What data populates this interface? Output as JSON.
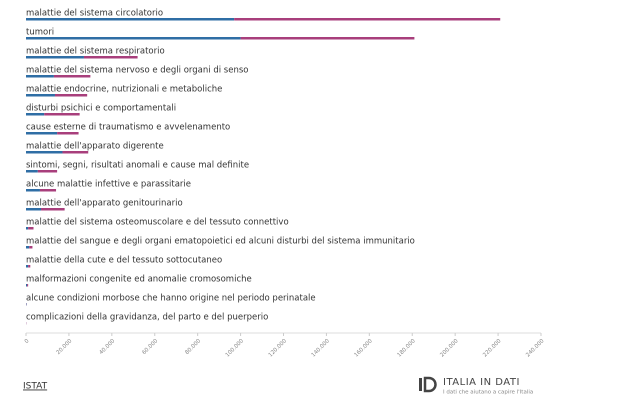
{
  "chart_data": {
    "type": "stacked-bar-horizontal",
    "categories": [
      "malattie del sistema circolatorio",
      "tumori",
      "malattie del sistema respiratorio",
      "malattie del sistema nervoso e degli organi di senso",
      "malattie endocrine, nutrizionali e metaboliche",
      "disturbi psichici e comportamentali",
      "cause esterne di traumatismo e avvelenamento",
      "malattie dell'apparato digerente",
      "sintomi, segni, risultati anomali e cause mal definite",
      "alcune malattie infettive e parassitarie",
      "malattie dell'apparato genitourinario",
      "malattie del sistema osteomuscolare e del tessuto connettivo",
      "malattie del sangue e degli organi ematopoietici ed alcuni disturbi del sistema immunitario",
      "malattie della cute e del tessuto sottocutaneo",
      "malformazioni congenite ed anomalie cromosomiche",
      "alcune condizioni morbose che hanno origine nel periodo perinatale",
      "complicazioni della gravidanza, del parto e del puerperio"
    ],
    "series": [
      {
        "color": "#2f6ea5",
        "values": [
          97000,
          100000,
          27000,
          13000,
          13500,
          8500,
          14500,
          17000,
          5500,
          6500,
          7000,
          1000,
          1500,
          1000,
          500,
          200,
          50
        ]
      },
      {
        "color": "#a83f7c",
        "values": [
          124000,
          81000,
          25000,
          17000,
          15000,
          16500,
          10000,
          12000,
          9000,
          7500,
          11000,
          2500,
          1500,
          1000,
          500,
          100,
          100
        ]
      }
    ],
    "xlim": [
      0,
      240000
    ],
    "xticks": [
      0,
      {
        "value": 20000,
        "label": "20.000"
      },
      {
        "value": 40000,
        "label": "40.000"
      },
      {
        "value": 60000,
        "label": "60.000"
      },
      {
        "value": 80000,
        "label": "80.000"
      },
      {
        "value": 100000,
        "label": "100.000"
      },
      {
        "value": 120000,
        "label": "120.000"
      },
      {
        "value": 140000,
        "label": "140.000"
      },
      {
        "value": 160000,
        "label": "160.000"
      },
      {
        "value": 180000,
        "label": "180.000"
      },
      {
        "value": 200000,
        "label": "200.000"
      },
      {
        "value": 220000,
        "label": "220.000"
      },
      {
        "value": 240000,
        "label": "240.000"
      }
    ]
  },
  "source": "ISTAT",
  "logo": {
    "title": "ITALIA IN DATI",
    "tagline": "I dati che aiutano a capire l'Italia"
  }
}
